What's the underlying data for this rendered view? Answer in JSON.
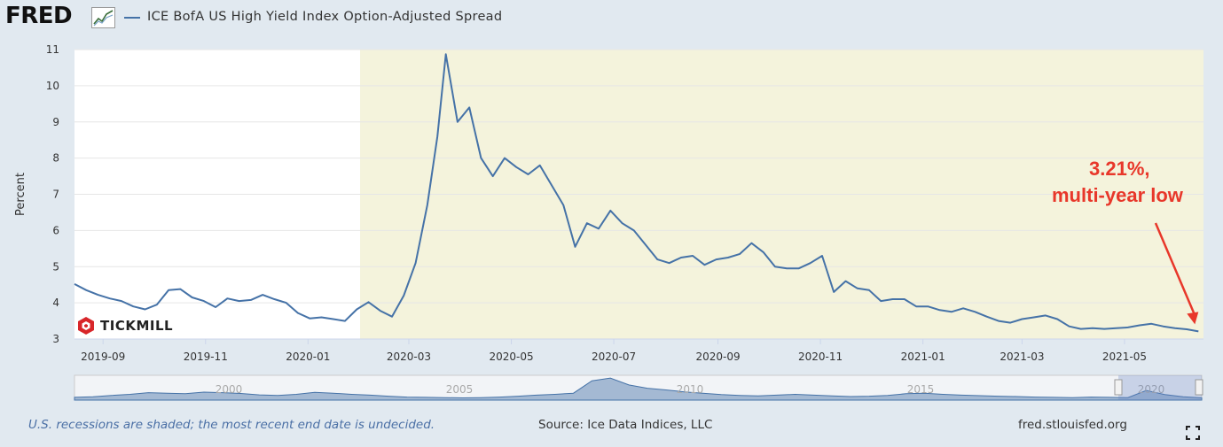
{
  "header": {
    "logo": "FRED",
    "series_label": "ICE BofA US High Yield Index Option-Adjusted Spread"
  },
  "footer": {
    "note": "U.S. recessions are shaded; the most recent end date is undecided.",
    "source": "Source: Ice Data Indices, LLC",
    "site": "fred.stlouisfed.org"
  },
  "annotation": {
    "line1": "3.21%,",
    "line2": "multi-year low"
  },
  "watermark": "TICKMILL",
  "colors": {
    "line": "#4572a7",
    "recession_shade": "#f4f3dc",
    "annotation": "#e8372a",
    "background": "#e1e9f0"
  },
  "icons": [
    "chart-icon",
    "tickmill-logo-icon",
    "fullscreen-icon"
  ],
  "chart_data": {
    "type": "line",
    "title": "",
    "xlabel": "",
    "ylabel": "Percent",
    "ylim": [
      3,
      11
    ],
    "xlim": [
      "2019-08-15",
      "2021-06-17"
    ],
    "y_ticks": [
      3,
      4,
      5,
      6,
      7,
      8,
      9,
      10,
      11
    ],
    "x_ticks": [
      "2019-09",
      "2019-11",
      "2020-01",
      "2020-03",
      "2020-05",
      "2020-07",
      "2020-09",
      "2020-11",
      "2021-01",
      "2021-03",
      "2021-05"
    ],
    "grid": true,
    "recession_start": "2020-02-01",
    "series": [
      {
        "values": [
          [
            "2019-08-15",
            4.52
          ],
          [
            "2019-08-22",
            4.35
          ],
          [
            "2019-08-29",
            4.22
          ],
          [
            "2019-09-05",
            4.12
          ],
          [
            "2019-09-12",
            4.05
          ],
          [
            "2019-09-19",
            3.9
          ],
          [
            "2019-09-26",
            3.82
          ],
          [
            "2019-10-03",
            3.95
          ],
          [
            "2019-10-10",
            4.35
          ],
          [
            "2019-10-17",
            4.38
          ],
          [
            "2019-10-24",
            4.15
          ],
          [
            "2019-10-31",
            4.05
          ],
          [
            "2019-11-07",
            3.88
          ],
          [
            "2019-11-14",
            4.12
          ],
          [
            "2019-11-21",
            4.05
          ],
          [
            "2019-11-28",
            4.08
          ],
          [
            "2019-12-05",
            4.22
          ],
          [
            "2019-12-12",
            4.1
          ],
          [
            "2019-12-19",
            4.0
          ],
          [
            "2019-12-26",
            3.72
          ],
          [
            "2020-01-02",
            3.57
          ],
          [
            "2020-01-09",
            3.6
          ],
          [
            "2020-01-16",
            3.55
          ],
          [
            "2020-01-23",
            3.5
          ],
          [
            "2020-01-30",
            3.82
          ],
          [
            "2020-02-06",
            4.02
          ],
          [
            "2020-02-13",
            3.78
          ],
          [
            "2020-02-20",
            3.62
          ],
          [
            "2020-02-27",
            4.2
          ],
          [
            "2020-03-05",
            5.1
          ],
          [
            "2020-03-12",
            6.7
          ],
          [
            "2020-03-18",
            8.6
          ],
          [
            "2020-03-23",
            10.87
          ],
          [
            "2020-03-30",
            9.0
          ],
          [
            "2020-04-06",
            9.4
          ],
          [
            "2020-04-13",
            8.0
          ],
          [
            "2020-04-20",
            7.5
          ],
          [
            "2020-04-27",
            8.0
          ],
          [
            "2020-05-04",
            7.75
          ],
          [
            "2020-05-11",
            7.55
          ],
          [
            "2020-05-18",
            7.8
          ],
          [
            "2020-05-25",
            7.25
          ],
          [
            "2020-06-01",
            6.7
          ],
          [
            "2020-06-08",
            5.55
          ],
          [
            "2020-06-15",
            6.2
          ],
          [
            "2020-06-22",
            6.05
          ],
          [
            "2020-06-29",
            6.55
          ],
          [
            "2020-07-06",
            6.2
          ],
          [
            "2020-07-13",
            6.0
          ],
          [
            "2020-07-20",
            5.6
          ],
          [
            "2020-07-27",
            5.2
          ],
          [
            "2020-08-03",
            5.1
          ],
          [
            "2020-08-10",
            5.25
          ],
          [
            "2020-08-17",
            5.3
          ],
          [
            "2020-08-24",
            5.05
          ],
          [
            "2020-08-31",
            5.2
          ],
          [
            "2020-09-07",
            5.25
          ],
          [
            "2020-09-14",
            5.35
          ],
          [
            "2020-09-21",
            5.65
          ],
          [
            "2020-09-28",
            5.4
          ],
          [
            "2020-10-05",
            5.0
          ],
          [
            "2020-10-12",
            4.95
          ],
          [
            "2020-10-19",
            4.95
          ],
          [
            "2020-10-26",
            5.1
          ],
          [
            "2020-11-02",
            5.3
          ],
          [
            "2020-11-09",
            4.3
          ],
          [
            "2020-11-16",
            4.6
          ],
          [
            "2020-11-23",
            4.4
          ],
          [
            "2020-11-30",
            4.35
          ],
          [
            "2020-12-07",
            4.05
          ],
          [
            "2020-12-14",
            4.1
          ],
          [
            "2020-12-21",
            4.1
          ],
          [
            "2020-12-28",
            3.9
          ],
          [
            "2021-01-04",
            3.9
          ],
          [
            "2021-01-11",
            3.8
          ],
          [
            "2021-01-18",
            3.75
          ],
          [
            "2021-01-25",
            3.85
          ],
          [
            "2021-02-01",
            3.75
          ],
          [
            "2021-02-08",
            3.62
          ],
          [
            "2021-02-15",
            3.5
          ],
          [
            "2021-02-22",
            3.45
          ],
          [
            "2021-03-01",
            3.55
          ],
          [
            "2021-03-08",
            3.6
          ],
          [
            "2021-03-15",
            3.65
          ],
          [
            "2021-03-22",
            3.55
          ],
          [
            "2021-03-29",
            3.35
          ],
          [
            "2021-04-05",
            3.28
          ],
          [
            "2021-04-12",
            3.3
          ],
          [
            "2021-04-19",
            3.28
          ],
          [
            "2021-04-26",
            3.3
          ],
          [
            "2021-05-03",
            3.32
          ],
          [
            "2021-05-10",
            3.38
          ],
          [
            "2021-05-17",
            3.42
          ],
          [
            "2021-05-24",
            3.35
          ],
          [
            "2021-05-31",
            3.3
          ],
          [
            "2021-06-07",
            3.27
          ],
          [
            "2021-06-14",
            3.21
          ]
        ]
      }
    ]
  },
  "navigator": {
    "labels": [
      "2000",
      "2005",
      "2010",
      "2015",
      "2020"
    ]
  }
}
